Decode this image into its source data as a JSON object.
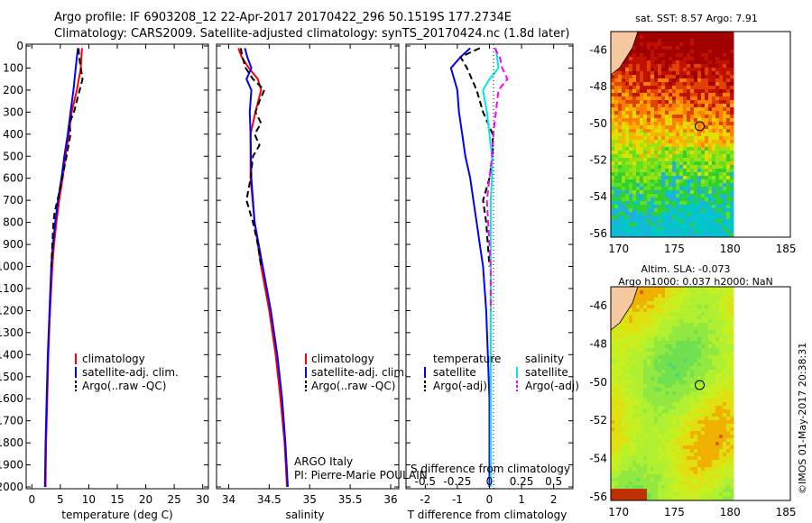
{
  "header": {
    "line1": "Argo profile: IF 6903208_12 22-Apr-2017 20170422_296 50.1519S 177.2734E",
    "line2": "Climatology: CARS2009. Satellite-adjusted climatology: synTS_20170424.nc (1.8d later)"
  },
  "depth_ticks": [
    "0",
    "100",
    "200",
    "300",
    "400",
    "500",
    "600",
    "700",
    "800",
    "900",
    "1000",
    "1100",
    "1200",
    "1300",
    "1400",
    "1500",
    "1600",
    "1700",
    "1800",
    "1900",
    "2000"
  ],
  "colors": {
    "climatology": "#ff0000",
    "satellite": "#0000ff",
    "argo": "#000000",
    "sal_satellite": "#00e5ee",
    "sal_argo": "#ff00ff"
  },
  "temperature_panel": {
    "xlabel": "temperature (deg C)",
    "xticks": [
      "0",
      "5",
      "10",
      "15",
      "20",
      "25",
      "30"
    ],
    "legend": [
      "climatology",
      "satellite-adj. clim.",
      "Argo(..raw -QC)"
    ]
  },
  "salinity_panel": {
    "xlabel": "salinity",
    "xticks": [
      "34",
      "34.5",
      "35",
      "35.5",
      "36"
    ],
    "legend": [
      "climatology",
      "satellite-adj. clim.",
      "Argo(..raw -QC)"
    ],
    "note_line1": "ARGO Italy",
    "note_line2": "PI: Pierre-Marie POULAIN"
  },
  "difference_panel": {
    "xlabel": "T difference from climatology",
    "xticks": [
      "-2",
      "-1",
      "0",
      "1",
      "2"
    ],
    "top_label": "S difference from climatology",
    "top_ticks": [
      "-0.5",
      "-0.25",
      "0",
      "0.25",
      "0.5"
    ],
    "legend_temp_title": "temperature",
    "legend_temp": [
      "satellite",
      "Argo(-adj)"
    ],
    "legend_sal_title": "salinity",
    "legend_sal": [
      "satellite",
      "Argo(-adj)"
    ]
  },
  "sst_map": {
    "title": "sat. SST: 8.57  Argo: 7.91",
    "yticks": [
      "-46",
      "-48",
      "-50",
      "-52",
      "-54",
      "-56"
    ],
    "xticks": [
      "170",
      "175",
      "180",
      "185"
    ]
  },
  "sla_map": {
    "title_line1": "Altim. SLA: -0.073",
    "title_line2": "Argo h1000: 0.037 h2000: NaN",
    "yticks": [
      "-46",
      "-48",
      "-50",
      "-52",
      "-54",
      "-56"
    ],
    "xticks": [
      "170",
      "175",
      "180",
      "185"
    ]
  },
  "footer_vertical": "©IMOS 01-May-2017 20:38:31",
  "chart_data": [
    {
      "type": "line",
      "ylabel": "",
      "xlabel": "temperature (deg C)",
      "xlim": [
        -1,
        31
      ],
      "ylim": [
        2050,
        0
      ],
      "series": [
        {
          "name": "climatology",
          "color": "#ff0000",
          "depth": [
            10,
            50,
            100,
            200,
            300,
            400,
            500,
            600,
            700,
            800,
            900,
            1000,
            1200,
            1400,
            1600,
            1800,
            2000
          ],
          "values": [
            8.8,
            8.7,
            8.6,
            7.9,
            7.0,
            6.5,
            5.9,
            5.4,
            4.8,
            4.3,
            3.9,
            3.6,
            3.2,
            2.9,
            2.7,
            2.5,
            2.4
          ]
        },
        {
          "name": "satellite-adj. clim.",
          "color": "#0000ff",
          "depth": [
            10,
            50,
            100,
            200,
            300,
            400,
            500,
            600,
            700,
            800,
            900,
            1000,
            1200,
            1400,
            1600,
            1800,
            2000
          ],
          "values": [
            8.1,
            7.9,
            7.7,
            7.3,
            6.8,
            6.3,
            5.7,
            5.2,
            4.6,
            4.1,
            3.7,
            3.4,
            3.1,
            2.8,
            2.6,
            2.4,
            2.3
          ]
        },
        {
          "name": "Argo(..raw -QC)",
          "color": "#000000",
          "depth": [
            10,
            50,
            100,
            150,
            200,
            300,
            350,
            400,
            500,
            600,
            700,
            750,
            800,
            900,
            1000
          ],
          "values": [
            8.2,
            8.3,
            8.6,
            8.9,
            8.4,
            7.4,
            6.6,
            6.8,
            6.1,
            5.3,
            4.5,
            4.0,
            3.8,
            3.6,
            3.4
          ]
        }
      ]
    },
    {
      "type": "line",
      "xlabel": "salinity",
      "xlim": [
        33.85,
        36.1
      ],
      "ylim": [
        2050,
        0
      ],
      "series": [
        {
          "name": "climatology",
          "color": "#ff0000",
          "depth": [
            10,
            50,
            100,
            150,
            200,
            300,
            400,
            600,
            800,
            1000,
            1200,
            1400,
            1600,
            1800,
            2000
          ],
          "values": [
            34.12,
            34.16,
            34.25,
            34.36,
            34.4,
            34.33,
            34.27,
            34.27,
            34.32,
            34.4,
            34.5,
            34.58,
            34.64,
            34.69,
            34.72
          ]
        },
        {
          "name": "satellite-adj. clim.",
          "color": "#0000ff",
          "depth": [
            10,
            50,
            100,
            150,
            200,
            300,
            400,
            600,
            800,
            1000,
            1200,
            1400,
            1600,
            1800,
            2000
          ],
          "values": [
            34.2,
            34.23,
            34.28,
            34.22,
            34.28,
            34.26,
            34.27,
            34.28,
            34.32,
            34.42,
            34.52,
            34.6,
            34.66,
            34.7,
            34.73
          ]
        },
        {
          "name": "Argo(..raw -QC)",
          "color": "#000000",
          "depth": [
            10,
            50,
            100,
            150,
            200,
            250,
            300,
            350,
            400,
            450,
            500,
            600,
            700,
            800,
            900,
            1000
          ],
          "values": [
            34.15,
            34.17,
            34.21,
            34.3,
            34.44,
            34.38,
            34.33,
            34.4,
            34.32,
            34.38,
            34.3,
            34.27,
            34.22,
            34.3,
            34.36,
            34.4
          ]
        }
      ]
    },
    {
      "type": "line",
      "xlabel": "T difference from climatology",
      "xlim": [
        -2.6,
        2.6
      ],
      "ylim": [
        2050,
        0
      ],
      "series": [
        {
          "name": "temperature satellite",
          "color": "#0000ff",
          "depth": [
            10,
            50,
            100,
            150,
            200,
            300,
            400,
            500,
            600,
            700,
            800,
            900,
            1000,
            1200,
            1400,
            1600,
            2000
          ],
          "values": [
            -0.6,
            -0.9,
            -1.2,
            -1.1,
            -1.0,
            -0.95,
            -0.85,
            -0.75,
            -0.6,
            -0.5,
            -0.4,
            -0.3,
            -0.2,
            -0.1,
            -0.05,
            0,
            0
          ]
        },
        {
          "name": "temperature Argo(-adj)",
          "color": "#000000",
          "depth": [
            10,
            50,
            100,
            200,
            300,
            400,
            500,
            600,
            700,
            800,
            900,
            1000
          ],
          "values": [
            -0.3,
            -0.9,
            -0.7,
            -0.4,
            -0.2,
            0.1,
            0.1,
            0.0,
            -0.2,
            -0.1,
            -0.05,
            0
          ]
        },
        {
          "name": "salinity satellite",
          "color": "#00e5ee",
          "depth": [
            10,
            50,
            100,
            150,
            200,
            300,
            400,
            500,
            600,
            700,
            1000,
            1400,
            2000
          ],
          "values": [
            0.05,
            0.06,
            0.07,
            0.0,
            -0.05,
            -0.02,
            0.0,
            0.02,
            0.02,
            0.01,
            0.01,
            0.01,
            0.01
          ]
        },
        {
          "name": "salinity Argo(-adj)",
          "color": "#ff00ff",
          "depth": [
            10,
            50,
            100,
            150,
            200,
            300,
            400,
            500,
            600,
            700,
            800,
            900,
            1000,
            1200
          ],
          "values": [
            0.04,
            0.08,
            0.1,
            0.14,
            0.07,
            0.05,
            0.03,
            0.02,
            0.0,
            -0.02,
            -0.01,
            0.0,
            0.01,
            0.01
          ]
        }
      ]
    }
  ]
}
